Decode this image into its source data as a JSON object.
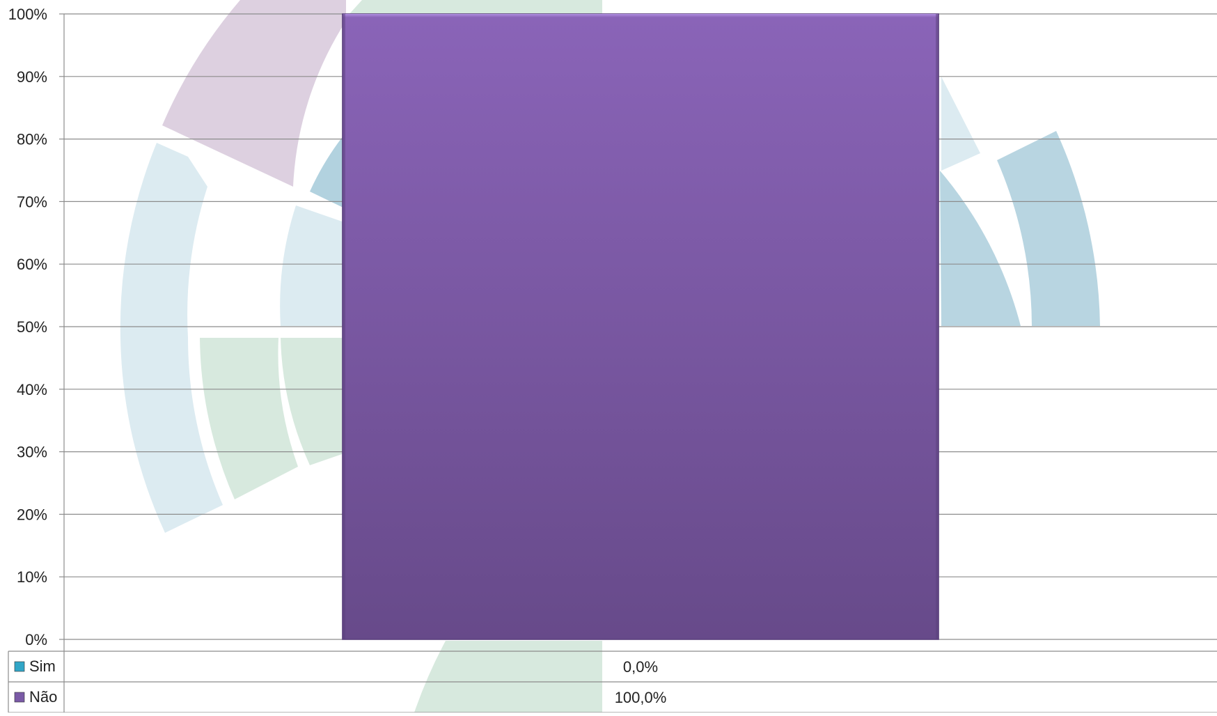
{
  "chart_data": {
    "type": "bar",
    "categories": [
      ""
    ],
    "series": [
      {
        "name": "Sim",
        "values": [
          0.0
        ],
        "color": "#31a6c7",
        "value_label": "0,0%"
      },
      {
        "name": "Não",
        "values": [
          100.0
        ],
        "color": "#7a5aa6",
        "value_label": "100,0%"
      }
    ],
    "stacked": true,
    "title": "",
    "xlabel": "",
    "ylabel": "",
    "ylim": [
      0,
      100
    ],
    "yticks": [
      "0%",
      "10%",
      "20%",
      "30%",
      "40%",
      "50%",
      "60%",
      "70%",
      "80%",
      "90%",
      "100%"
    ],
    "grid": true,
    "legend": "data-table-below",
    "colors": {
      "bar_top": "#8a64b8",
      "bar_bottom": "#674a8a",
      "grid": "#8c8c8c",
      "watermark_blue": "#cfe5ee",
      "watermark_green": "#d3e9dc",
      "watermark_purple": "#dccfe0"
    }
  }
}
